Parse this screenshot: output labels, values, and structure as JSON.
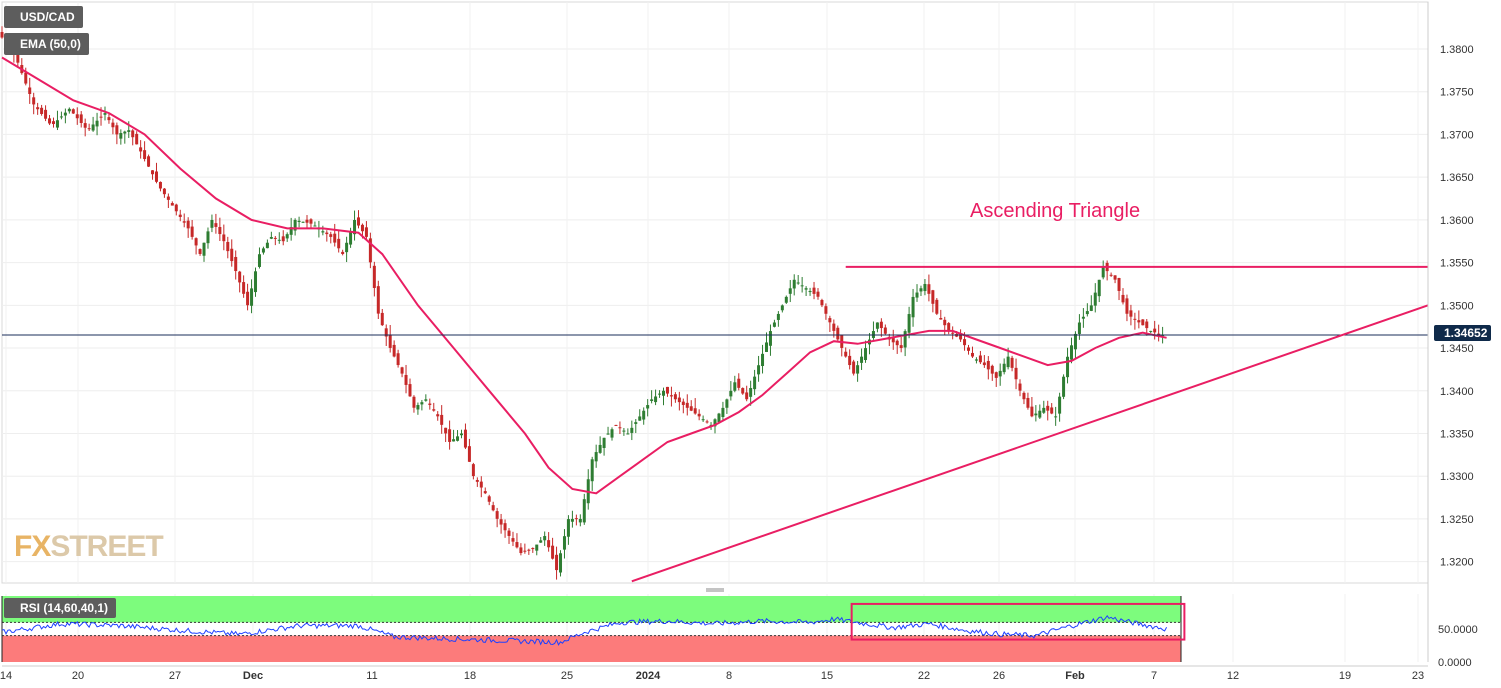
{
  "symbol": "USD/CAD",
  "indicator_label": "EMA (50,0)",
  "rsi_label": "RSI (14,60,40,1)",
  "last_price": "1.34652",
  "annotation": "Ascending Triangle",
  "watermark": {
    "prefix": "FX",
    "suffix": "STREET"
  },
  "colors": {
    "up": "#2e7d32",
    "down": "#c62828",
    "ema": "#e91e63",
    "trendline": "#e91e63",
    "rsi_line": "#1e40ff",
    "rsi_overbought": "#7dfc7d",
    "rsi_oversold": "#fc7b7b",
    "price_line": "#1a2d5a"
  },
  "chart_data": {
    "type": "candlestick",
    "title": "USD/CAD",
    "ylim": [
      1.3175,
      1.3855
    ],
    "y_ticks": [
      "1.3800",
      "1.3750",
      "1.3700",
      "1.3650",
      "1.3600",
      "1.3550",
      "1.3500",
      "1.3450",
      "1.3400",
      "1.3350",
      "1.3300",
      "1.3250",
      "1.3200"
    ],
    "x_ticks": [
      "14",
      "20",
      "27",
      "Dec",
      "11",
      "18",
      "25",
      "2024",
      "8",
      "15",
      "22",
      "26",
      "Feb",
      "7",
      "12",
      "19",
      "23"
    ],
    "price_path": [
      [
        0,
        1.382
      ],
      [
        3,
        1.379
      ],
      [
        6,
        1.3735
      ],
      [
        9,
        1.371
      ],
      [
        12,
        1.373
      ],
      [
        15,
        1.3705
      ],
      [
        18,
        1.3725
      ],
      [
        20,
        1.37
      ],
      [
        22,
        1.3705
      ],
      [
        24,
        1.368
      ],
      [
        27,
        1.364
      ],
      [
        30,
        1.361
      ],
      [
        32,
        1.359
      ],
      [
        34,
        1.356
      ],
      [
        36,
        1.36
      ],
      [
        38,
        1.3575
      ],
      [
        40,
        1.354
      ],
      [
        42,
        1.35
      ],
      [
        44,
        1.356
      ],
      [
        46,
        1.358
      ],
      [
        48,
        1.3575
      ],
      [
        50,
        1.36
      ],
      [
        53,
        1.3595
      ],
      [
        56,
        1.358
      ],
      [
        58,
        1.356
      ],
      [
        60,
        1.36
      ],
      [
        62,
        1.358
      ],
      [
        64,
        1.349
      ],
      [
        66,
        1.345
      ],
      [
        68,
        1.342
      ],
      [
        70,
        1.338
      ],
      [
        72,
        1.339
      ],
      [
        74,
        1.337
      ],
      [
        76,
        1.334
      ],
      [
        78,
        1.335
      ],
      [
        80,
        1.33
      ],
      [
        82,
        1.328
      ],
      [
        84,
        1.325
      ],
      [
        86,
        1.323
      ],
      [
        88,
        1.321
      ],
      [
        90,
        1.3215
      ],
      [
        92,
        1.323
      ],
      [
        94,
        1.319
      ],
      [
        96,
        1.325
      ],
      [
        98,
        1.325
      ],
      [
        100,
        1.332
      ],
      [
        102,
        1.3345
      ],
      [
        104,
        1.336
      ],
      [
        106,
        1.335
      ],
      [
        108,
        1.337
      ],
      [
        110,
        1.339
      ],
      [
        112,
        1.34
      ],
      [
        114,
        1.339
      ],
      [
        116,
        1.338
      ],
      [
        118,
        1.337
      ],
      [
        120,
        1.336
      ],
      [
        122,
        1.338
      ],
      [
        124,
        1.341
      ],
      [
        126,
        1.339
      ],
      [
        128,
        1.343
      ],
      [
        130,
        1.347
      ],
      [
        132,
        1.35
      ],
      [
        134,
        1.353
      ],
      [
        136,
        1.352
      ],
      [
        138,
        1.351
      ],
      [
        140,
        1.348
      ],
      [
        142,
        1.345
      ],
      [
        144,
        1.342
      ],
      [
        146,
        1.345
      ],
      [
        148,
        1.348
      ],
      [
        150,
        1.346
      ],
      [
        152,
        1.345
      ],
      [
        154,
        1.351
      ],
      [
        156,
        1.3525
      ],
      [
        158,
        1.349
      ],
      [
        160,
        1.347
      ],
      [
        162,
        1.346
      ],
      [
        164,
        1.344
      ],
      [
        166,
        1.343
      ],
      [
        168,
        1.3415
      ],
      [
        170,
        1.344
      ],
      [
        172,
        1.34
      ],
      [
        174,
        1.337
      ],
      [
        176,
        1.338
      ],
      [
        178,
        1.337
      ],
      [
        180,
        1.344
      ],
      [
        182,
        1.348
      ],
      [
        184,
        1.35
      ],
      [
        186,
        1.3545
      ],
      [
        188,
        1.353
      ],
      [
        190,
        1.349
      ],
      [
        192,
        1.348
      ],
      [
        194,
        1.347
      ],
      [
        196,
        1.3465
      ]
    ],
    "ema_path": [
      [
        0,
        1.379
      ],
      [
        6,
        1.3765
      ],
      [
        12,
        1.374
      ],
      [
        18,
        1.3725
      ],
      [
        24,
        1.37
      ],
      [
        30,
        1.366
      ],
      [
        36,
        1.3625
      ],
      [
        42,
        1.36
      ],
      [
        48,
        1.359
      ],
      [
        54,
        1.359
      ],
      [
        60,
        1.3585
      ],
      [
        64,
        1.356
      ],
      [
        70,
        1.35
      ],
      [
        76,
        1.345
      ],
      [
        82,
        1.34
      ],
      [
        88,
        1.335
      ],
      [
        92,
        1.331
      ],
      [
        96,
        1.3285
      ],
      [
        100,
        1.328
      ],
      [
        104,
        1.33
      ],
      [
        108,
        1.332
      ],
      [
        112,
        1.334
      ],
      [
        116,
        1.335
      ],
      [
        120,
        1.336
      ],
      [
        124,
        1.3375
      ],
      [
        128,
        1.3395
      ],
      [
        132,
        1.342
      ],
      [
        136,
        1.3445
      ],
      [
        140,
        1.3458
      ],
      [
        144,
        1.3455
      ],
      [
        148,
        1.346
      ],
      [
        152,
        1.3465
      ],
      [
        156,
        1.347
      ],
      [
        160,
        1.347
      ],
      [
        164,
        1.346
      ],
      [
        168,
        1.345
      ],
      [
        172,
        1.344
      ],
      [
        176,
        1.343
      ],
      [
        180,
        1.3435
      ],
      [
        184,
        1.345
      ],
      [
        188,
        1.3462
      ],
      [
        192,
        1.3468
      ],
      [
        196,
        1.3462
      ]
    ],
    "horizontal_resistance": {
      "y": 1.3545,
      "x_start": 142,
      "x_end": 240
    },
    "ascending_support": {
      "start": [
        106,
        1.3177
      ],
      "end": [
        240,
        1.35
      ]
    },
    "rsi": {
      "label": "RSI (14,60,40,1)",
      "upper": 60,
      "lower": 40,
      "ticks": [
        "50.0000",
        "0.0000"
      ],
      "path": [
        [
          0,
          45
        ],
        [
          10,
          58
        ],
        [
          20,
          55
        ],
        [
          30,
          48
        ],
        [
          40,
          42
        ],
        [
          50,
          55
        ],
        [
          60,
          55
        ],
        [
          66,
          38
        ],
        [
          76,
          35
        ],
        [
          86,
          32
        ],
        [
          94,
          30
        ],
        [
          98,
          45
        ],
        [
          104,
          60
        ],
        [
          112,
          62
        ],
        [
          120,
          58
        ],
        [
          128,
          62
        ],
        [
          136,
          60
        ],
        [
          140,
          65
        ],
        [
          150,
          52
        ],
        [
          156,
          58
        ],
        [
          162,
          48
        ],
        [
          168,
          42
        ],
        [
          174,
          40
        ],
        [
          180,
          55
        ],
        [
          186,
          68
        ],
        [
          190,
          60
        ],
        [
          196,
          50
        ]
      ],
      "annotation_box": {
        "x_start": 143,
        "x_end": 199,
        "y_low": 34,
        "y_high": 88
      }
    }
  }
}
